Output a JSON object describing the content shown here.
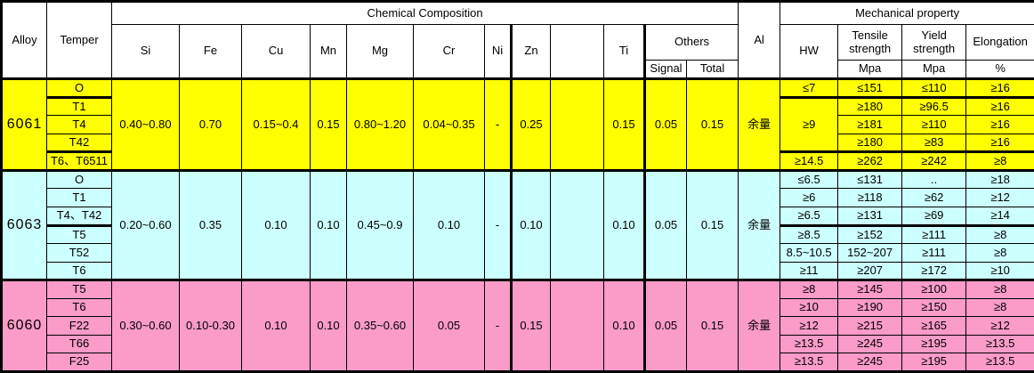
{
  "table": {
    "border_color": "#000000",
    "header_bg": "#FFFFFF",
    "header": {
      "alloy": "Alloy",
      "temper": "Temper",
      "chemical_composition": "Chemical Composition",
      "al": "Al",
      "mechanical_property": "Mechanical property",
      "elements": [
        "Si",
        "Fe",
        "Cu",
        "Mn",
        "Mg",
        "Cr",
        "Ni",
        "Zn",
        "",
        "Ti"
      ],
      "others": "Others",
      "signal": "Signal",
      "total": "Total",
      "hw": "HW",
      "tensile": "Tensile strength",
      "yield": "Yield strength",
      "elongation": "Elongation",
      "mpa": "Mpa",
      "percent": "%"
    },
    "groups": [
      {
        "alloy": "6061",
        "color": "#FFFF00",
        "chem": {
          "si": "0.40~0.80",
          "fe": "0.70",
          "cu": "0.15~0.4",
          "mn": "0.15",
          "mg": "0.80~1.20",
          "cr": "0.04~0.35",
          "ni": "-",
          "zn": "0.25",
          "extra": "",
          "ti": "0.15",
          "signal": "0.05",
          "total": "0.15",
          "al": "余量"
        },
        "rows": [
          {
            "temper": "O",
            "hw": "≤7",
            "tensile": "≤151",
            "yield": "≤110",
            "elong": "≥16",
            "thick_bottom": true
          },
          {
            "temper": "T1",
            "hw": "≥9",
            "hw_rowspan": 3,
            "hw_thick": true,
            "tensile": "≥180",
            "yield": "≥96.5",
            "elong": "≥16"
          },
          {
            "temper": "T4",
            "tensile": "≥181",
            "yield": "≥110",
            "elong": "≥16"
          },
          {
            "temper": "T42",
            "tensile": "≥180",
            "yield": "≥83",
            "elong": "≥16",
            "thick_bottom": true
          },
          {
            "temper": "T6、T6511",
            "hw": "≥14.5",
            "tensile": "≥262",
            "yield": "≥242",
            "elong": "≥8"
          }
        ]
      },
      {
        "alloy": "6063",
        "color": "#CCFFFF",
        "chem": {
          "si": "0.20~0.60",
          "fe": "0.35",
          "cu": "0.10",
          "mn": "0.10",
          "mg": "0.45~0.9",
          "cr": "0.10",
          "ni": "-",
          "zn": "0.10",
          "extra": "",
          "ti": "0.10",
          "signal": "0.05",
          "total": "0.15",
          "al": "余量"
        },
        "rows": [
          {
            "temper": "O",
            "hw": "≤6.5",
            "tensile": "≤131",
            "yield": "..",
            "elong": "≥18"
          },
          {
            "temper": "T1",
            "hw": "≥6",
            "tensile": "≥118",
            "yield": "≥62",
            "elong": "≥12"
          },
          {
            "temper": "T4、T42",
            "hw": "≥6.5",
            "tensile": "≥131",
            "yield": "≥69",
            "elong": "≥14",
            "thick_bottom": true
          },
          {
            "temper": "T5",
            "hw": "≥8.5",
            "tensile": "≥152",
            "yield": "≥111",
            "elong": "≥8"
          },
          {
            "temper": "T52",
            "hw": "8.5~10.5",
            "tensile": "152~207",
            "yield": "≥111",
            "elong": "≥8"
          },
          {
            "temper": "T6",
            "hw": "≥11",
            "tensile": "≥207",
            "yield": "≥172",
            "elong": "≥10"
          }
        ]
      },
      {
        "alloy": "6060",
        "color": "#FA9BC8",
        "chem": {
          "si": "0.30~0.60",
          "fe": "0.10-0.30",
          "cu": "0.10",
          "mn": "0.10",
          "mg": "0.35~0.60",
          "cr": "0.05",
          "ni": "-",
          "zn": "0.15",
          "extra": "",
          "ti": "0.10",
          "signal": "0.05",
          "total": "0.15",
          "al": "余量"
        },
        "rows": [
          {
            "temper": "T5",
            "hw": "≥8",
            "tensile": "≥145",
            "yield": "≥100",
            "elong": "≥8"
          },
          {
            "temper": "T6",
            "hw": "≥10",
            "tensile": "≥190",
            "yield": "≥150",
            "elong": "≥8"
          },
          {
            "temper": "F22",
            "hw": "≥12",
            "tensile": "≥215",
            "yield": "≥165",
            "elong": "≥12"
          },
          {
            "temper": "T66",
            "hw": "≥13.5",
            "tensile": "≥245",
            "yield": "≥195",
            "elong": "≥13.5"
          },
          {
            "temper": "F25",
            "hw": "≥13.5",
            "tensile": "≥245",
            "yield": "≥195",
            "elong": "≥13.5"
          }
        ]
      }
    ]
  }
}
